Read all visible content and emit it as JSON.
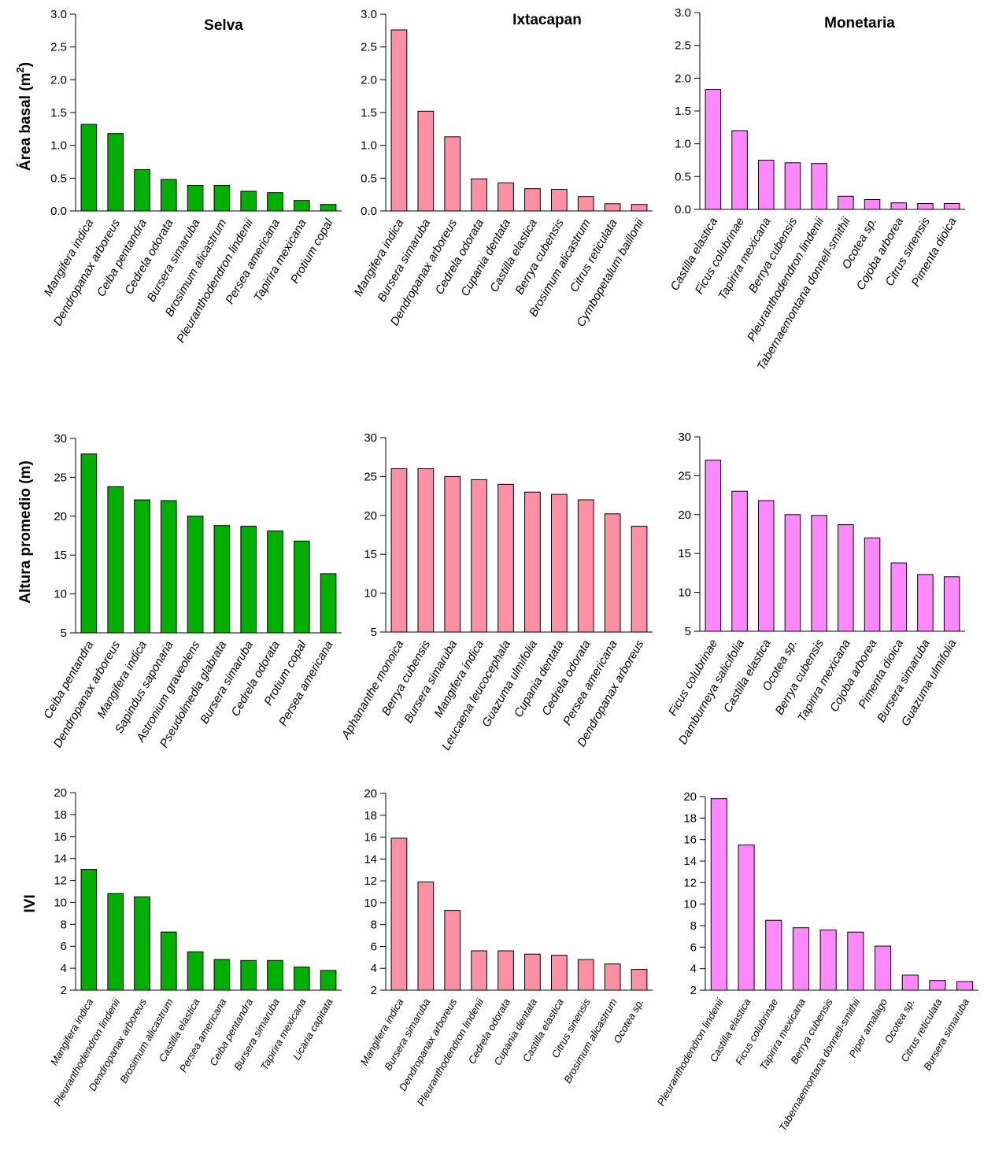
{
  "colors": {
    "Selva": "#00b000",
    "Ixtacapan": "#ff8fa3",
    "Monetaria": "#ff88ff",
    "stroke": "#000000"
  },
  "row_labels": {
    "r1": "Área basal (m",
    "r1_sup": "2",
    "r1_end": ")",
    "r2": "Altura promedio (m)",
    "r3": "IVI"
  },
  "titles": {
    "c1": "Selva",
    "c2": "Ixtacapan",
    "c3": "Monetaria"
  },
  "chart_data": [
    {
      "type": "bar",
      "site": "Selva",
      "title": "Selva",
      "ylabel": "Área basal (m2)",
      "ylim": [
        0,
        3.0
      ],
      "yticks": [
        "0.0",
        "0.5",
        "1.0",
        "1.5",
        "2.0",
        "2.5",
        "3.0"
      ],
      "categories": [
        "Mangifera  indica",
        "Dendropanax  arboreus",
        "Ceiba  pentandra",
        "Cedrela  odorata",
        "Bursera  simaruba",
        "Brosimum  alicastrum",
        "Pleuranthodendron  lindenii",
        "Persea  americana",
        "Tapirira  mexicana",
        "Protium  copal"
      ],
      "values": [
        1.32,
        1.18,
        0.63,
        0.48,
        0.39,
        0.39,
        0.3,
        0.28,
        0.16,
        0.1
      ]
    },
    {
      "type": "bar",
      "site": "Ixtacapan",
      "title": "Ixtacapan",
      "ylabel": "Área basal (m2)",
      "ylim": [
        0,
        3.0
      ],
      "yticks": [
        "0.0",
        "0.5",
        "1.0",
        "1.5",
        "2.0",
        "2.5",
        "3.0"
      ],
      "categories": [
        "Mangifera  indica",
        "Bursera  simaruba",
        "Dendropanax  arboreus",
        "Cedrela  odorata",
        "Cupania  dentata",
        "Castilla  elastica",
        "Berrya  cubensis",
        "Brosimum  alicastrum",
        "Citrus  reticulata",
        "Cymbopetalum  baillonii"
      ],
      "values": [
        2.76,
        1.52,
        1.13,
        0.49,
        0.43,
        0.34,
        0.33,
        0.22,
        0.11,
        0.1
      ]
    },
    {
      "type": "bar",
      "site": "Monetaria",
      "title": "Monetaria",
      "ylabel": "Área basal (m2)",
      "ylim": [
        0,
        3.0
      ],
      "yticks": [
        "0.0",
        "0.5",
        "1.0",
        "1.5",
        "2.0",
        "2.5",
        "3.0"
      ],
      "categories": [
        "Castilla  elastica",
        "Ficus  colubrinae",
        "Tapirira  mexicana",
        "Berrya  cubensis",
        "Pleuranthodendron  lindenii",
        "Tabernaemontana  donnell-smithii",
        "Ocotea  sp.",
        "Cojoba  arborea",
        "Citrus  sinensis",
        "Pimenta  dioica"
      ],
      "values": [
        1.83,
        1.2,
        0.75,
        0.71,
        0.7,
        0.2,
        0.15,
        0.1,
        0.09,
        0.09
      ]
    },
    {
      "type": "bar",
      "site": "Selva",
      "ylabel": "Altura promedio (m)",
      "ylim": [
        5,
        30
      ],
      "yticks": [
        "5",
        "10",
        "15",
        "20",
        "25",
        "30"
      ],
      "categories": [
        "Ceiba  pentandra",
        "Dendropanax  arboreus",
        "Mangifera  indica",
        "Sapindus  saponaria",
        "Astronium  graveolens",
        "Pseudolmedia  glabrata",
        "Bursera  simaruba",
        "Cedrela  odorata",
        "Protium  copal",
        "Persea  americana"
      ],
      "values": [
        28.0,
        23.8,
        22.1,
        22.0,
        20.0,
        18.8,
        18.7,
        18.1,
        16.8,
        12.6
      ]
    },
    {
      "type": "bar",
      "site": "Ixtacapan",
      "ylabel": "Altura promedio (m)",
      "ylim": [
        5,
        30
      ],
      "yticks": [
        "5",
        "10",
        "15",
        "20",
        "25",
        "30"
      ],
      "categories": [
        "Aphananthe  monoica",
        "Berrya  cubensis",
        "Bursera  simaruba",
        "Mangifera  indica",
        "Leucaena  leucocephala",
        "Guazuma  ulmifolia",
        "Cupania  dentata",
        "Cedrela  odorata",
        "Persea  americana",
        "Dendropanax  arboreus"
      ],
      "values": [
        26.0,
        26.0,
        25.0,
        24.6,
        24.0,
        23.0,
        22.7,
        22.0,
        20.2,
        18.6
      ]
    },
    {
      "type": "bar",
      "site": "Monetaria",
      "ylabel": "Altura promedio (m)",
      "ylim": [
        5,
        30
      ],
      "yticks": [
        "5",
        "10",
        "15",
        "20",
        "25",
        "30"
      ],
      "categories": [
        "Ficus  colubrinae",
        "Damburneya  salicifolia",
        "Castilla  elastica",
        "Ocotea  sp.",
        "Berrya  cubensis",
        "Tapirira  mexicana",
        "Cojoba  arborea",
        "Pimenta  dioica",
        "Bursera  simaruba",
        "Guazuma  ulmifolia"
      ],
      "values": [
        27.0,
        23.0,
        21.8,
        20.0,
        19.9,
        18.7,
        17.0,
        13.8,
        12.3,
        12.0
      ]
    },
    {
      "type": "bar",
      "site": "Selva",
      "ylabel": "IVI",
      "ylim": [
        2,
        20
      ],
      "yticks": [
        "2",
        "4",
        "6",
        "8",
        "10",
        "12",
        "14",
        "16",
        "18",
        "20"
      ],
      "categories": [
        "Mangifera indica",
        "Pleuranthodendron lindenii",
        "Dendropanax arboreus",
        "Brosimum alicastrum",
        "Castilla elastica",
        "Persea americana",
        "Ceiba pentandra",
        "Bursera simaruba",
        "Tapirira mexicana",
        "Licaria capitata"
      ],
      "values": [
        13.0,
        10.8,
        10.5,
        7.3,
        5.5,
        4.8,
        4.7,
        4.7,
        4.1,
        3.8
      ]
    },
    {
      "type": "bar",
      "site": "Ixtacapan",
      "ylabel": "IVI",
      "ylim": [
        2,
        20
      ],
      "yticks": [
        "2",
        "4",
        "6",
        "8",
        "10",
        "12",
        "14",
        "16",
        "18",
        "20"
      ],
      "categories": [
        "Mangifera indica",
        "Bursera simaruba",
        "Dendropanax arboreus",
        "Pleuranthodendron lindenii",
        "Cedrela odorata",
        "Cupania dentata",
        "Castilla elastica",
        "Citrus sinensis",
        "Brosimum alicastrum",
        "Ocotea sp."
      ],
      "values": [
        15.9,
        11.9,
        9.3,
        5.6,
        5.6,
        5.3,
        5.2,
        4.8,
        4.4,
        3.9
      ]
    },
    {
      "type": "bar",
      "site": "Monetaria",
      "ylabel": "IVI",
      "ylim": [
        2,
        20
      ],
      "yticks": [
        "2",
        "4",
        "6",
        "8",
        "10",
        "12",
        "14",
        "16",
        "18",
        "20"
      ],
      "categories": [
        "Pleuranthodendron lindenii",
        "Castilla elastica",
        "Ficus colubrinae",
        "Tapirira mexicana",
        "Berrya cubensis",
        "Tabernaemontana donnell-smithii",
        "Piper amalago",
        "Ocotea sp.",
        "Citrus reticulata",
        "Bursera simaruba"
      ],
      "values": [
        19.8,
        15.5,
        8.5,
        7.8,
        7.6,
        7.4,
        6.1,
        3.4,
        2.9,
        2.8
      ]
    }
  ]
}
